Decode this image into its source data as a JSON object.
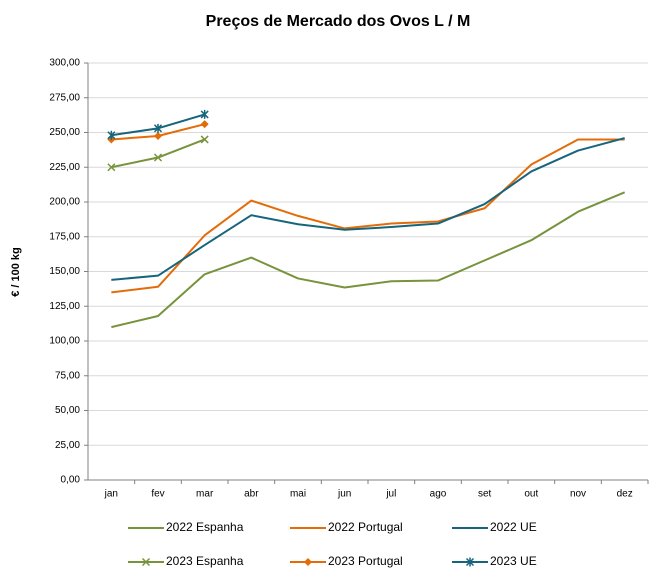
{
  "chart_data": {
    "type": "line",
    "title": "Preços de Mercado dos Ovos L / M",
    "y_label": "€ / 100 kg",
    "categories": [
      "jan",
      "fev",
      "mar",
      "abr",
      "mai",
      "jun",
      "jul",
      "ago",
      "set",
      "out",
      "nov",
      "dez"
    ],
    "ylim": [
      0,
      300
    ],
    "yticks": [
      {
        "value": 0,
        "label": "0,00"
      },
      {
        "value": 25,
        "label": "25,00"
      },
      {
        "value": 50,
        "label": "50,00"
      },
      {
        "value": 75,
        "label": "75,00"
      },
      {
        "value": 100,
        "label": "100,00"
      },
      {
        "value": 125,
        "label": "125,00"
      },
      {
        "value": 150,
        "label": "150,00"
      },
      {
        "value": 175,
        "label": "175,00"
      },
      {
        "value": 200,
        "label": "200,00"
      },
      {
        "value": 225,
        "label": "225,00"
      },
      {
        "value": 250,
        "label": "250,00"
      },
      {
        "value": 275,
        "label": "275,00"
      },
      {
        "value": 300,
        "label": "300,00"
      }
    ],
    "grid": true,
    "series": [
      {
        "name": "2022 Espanha",
        "color": "#77933c",
        "values": [
          110,
          118,
          148,
          160,
          145,
          138.5,
          143,
          143.5,
          158,
          172.5,
          193,
          207
        ]
      },
      {
        "name": "2022 Portugal",
        "color": "#e36c09",
        "values": [
          135,
          139,
          176,
          201,
          190,
          181,
          184.5,
          186,
          195.5,
          227,
          245,
          245
        ]
      },
      {
        "name": "2022 UE",
        "color": "#17657d",
        "values": [
          144,
          147,
          169,
          190.5,
          184,
          180,
          182,
          184.5,
          198.5,
          222,
          237,
          246
        ]
      },
      {
        "name": "2023 Espanha",
        "color": "#77933c",
        "marker": "x",
        "values": [
          225,
          232,
          245,
          null,
          null,
          null,
          null,
          null,
          null,
          null,
          null,
          null
        ]
      },
      {
        "name": "2023 Portugal",
        "color": "#e36c09",
        "marker": "diamond",
        "values": [
          245,
          247.5,
          256,
          null,
          null,
          null,
          null,
          null,
          null,
          null,
          null,
          null
        ]
      },
      {
        "name": "2023 UE",
        "color": "#17657d",
        "marker": "asterisk",
        "values": [
          248,
          253,
          263,
          null,
          null,
          null,
          null,
          null,
          null,
          null,
          null,
          null
        ]
      }
    ]
  }
}
